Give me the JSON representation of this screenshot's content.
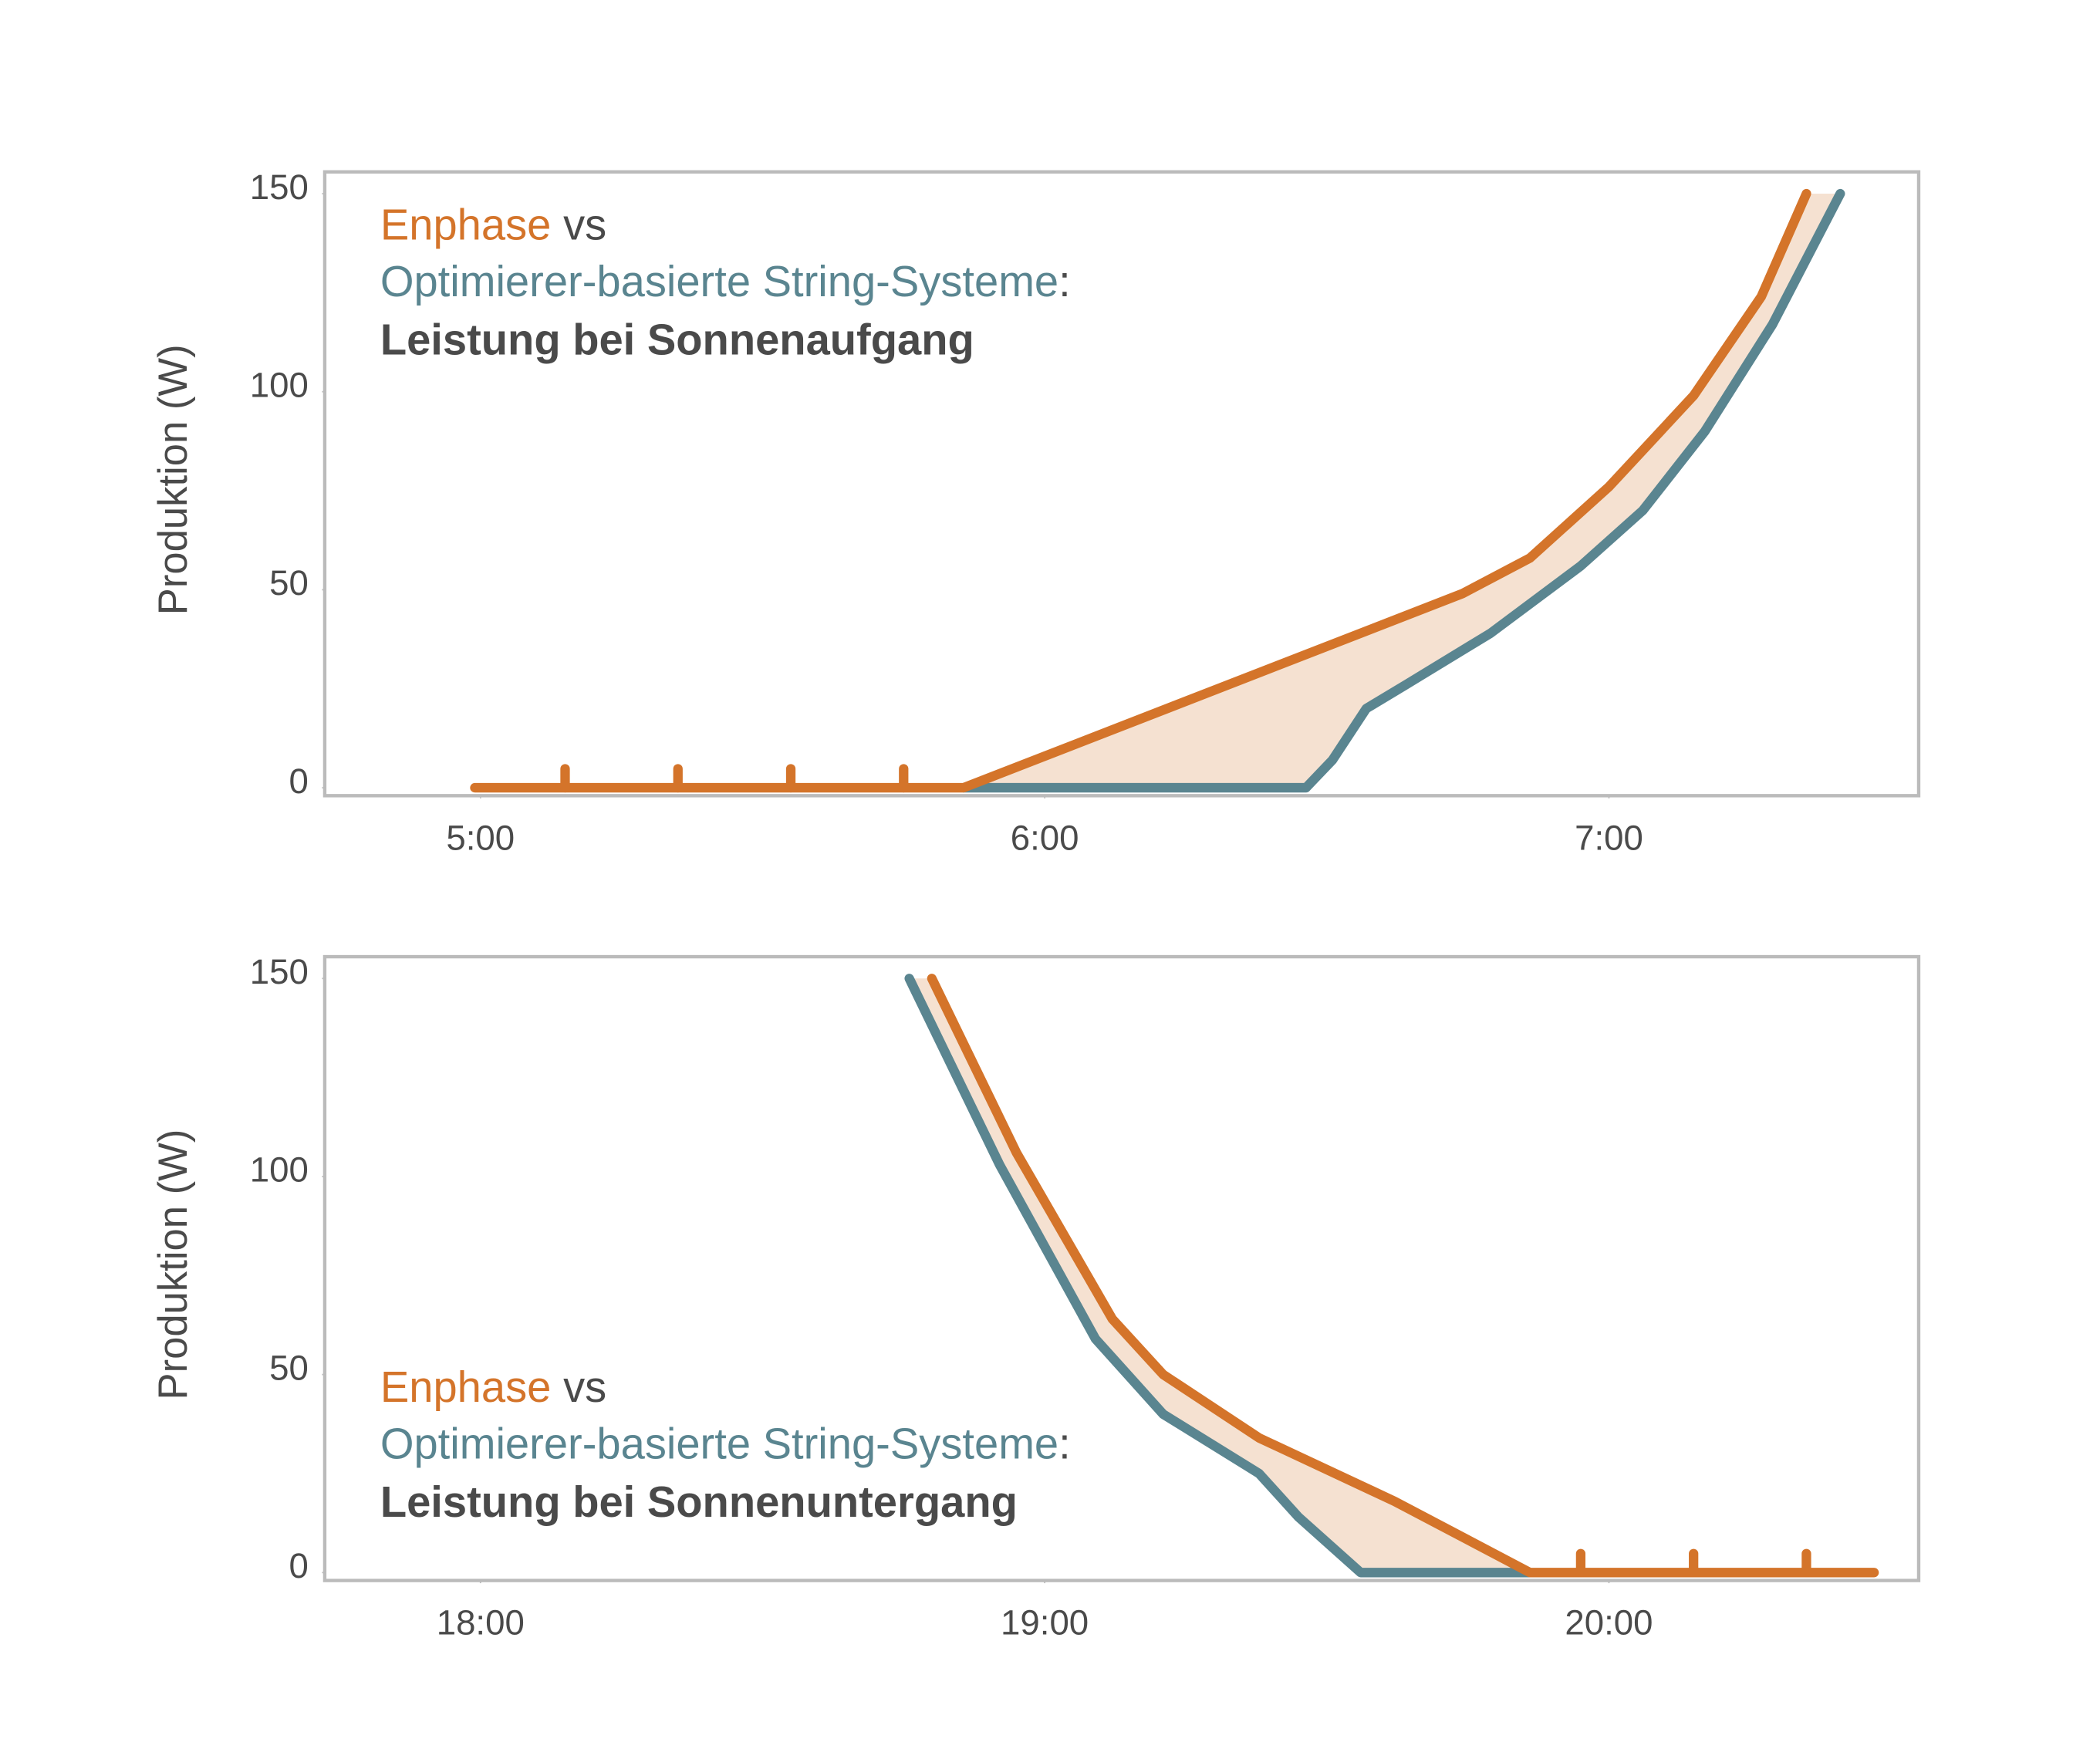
{
  "chart_data": [
    {
      "type": "line",
      "title": "Leistung bei Sonnenaufgang",
      "connector": "vs",
      "suffix": ":",
      "ylabel": "Produktion (W)",
      "legend": "top-left",
      "xlim": [
        4.724,
        7.549
      ],
      "ylim": [
        -2,
        155.5
      ],
      "xticks": [
        {
          "value": 5,
          "label": "5:00"
        },
        {
          "value": 6,
          "label": "6:00"
        },
        {
          "value": 7,
          "label": "7:00"
        }
      ],
      "yticks": [
        0,
        50,
        100,
        150
      ],
      "spikes_x": [
        5.15,
        5.35,
        5.55,
        5.75
      ],
      "fill_color": "#f5e1d1",
      "series": [
        {
          "name": "Enphase",
          "color": "#d4742a",
          "x": [
            4.99,
            5.856,
            6.74,
            6.86,
            7.0,
            7.15,
            7.27,
            7.35
          ],
          "values": [
            0,
            0,
            49,
            58,
            76,
            99,
            124,
            150
          ]
        },
        {
          "name": "Optimierer-basierte String-Systeme",
          "color": "#5a8590",
          "x": [
            5.856,
            6.463,
            6.51,
            6.57,
            6.64,
            6.79,
            6.95,
            7.06,
            7.17,
            7.29,
            7.41
          ],
          "values": [
            0,
            0,
            7,
            20,
            26,
            39,
            56,
            70,
            90,
            117,
            150
          ]
        }
      ]
    },
    {
      "type": "line",
      "title": "Leistung bei Sonnenuntergang",
      "connector": "vs",
      "suffix": ":",
      "ylabel": "Produktion (W)",
      "legend": "bottom-left",
      "xlim": [
        17.724,
        20.549
      ],
      "ylim": [
        -2,
        155.5
      ],
      "xticks": [
        {
          "value": 18,
          "label": "18:00"
        },
        {
          "value": 19,
          "label": "19:00"
        },
        {
          "value": 20,
          "label": "20:00"
        }
      ],
      "yticks": [
        0,
        50,
        100,
        150
      ],
      "spikes_x": [
        19.95,
        20.15,
        20.35
      ],
      "fill_color": "#f5e1d1",
      "series": [
        {
          "name": "Enphase",
          "color": "#d4742a",
          "x": [
            18.8,
            18.95,
            19.12,
            19.21,
            19.38,
            19.62,
            19.86,
            20.47
          ],
          "values": [
            150,
            106,
            64,
            50,
            34,
            18,
            0,
            0
          ]
        },
        {
          "name": "Optimierer-basierte String-Systeme",
          "color": "#5a8590",
          "x": [
            18.76,
            18.92,
            19.09,
            19.21,
            19.38,
            19.45,
            19.56,
            19.86
          ],
          "values": [
            150,
            103,
            59,
            40,
            25,
            14,
            0,
            0
          ]
        }
      ]
    }
  ]
}
